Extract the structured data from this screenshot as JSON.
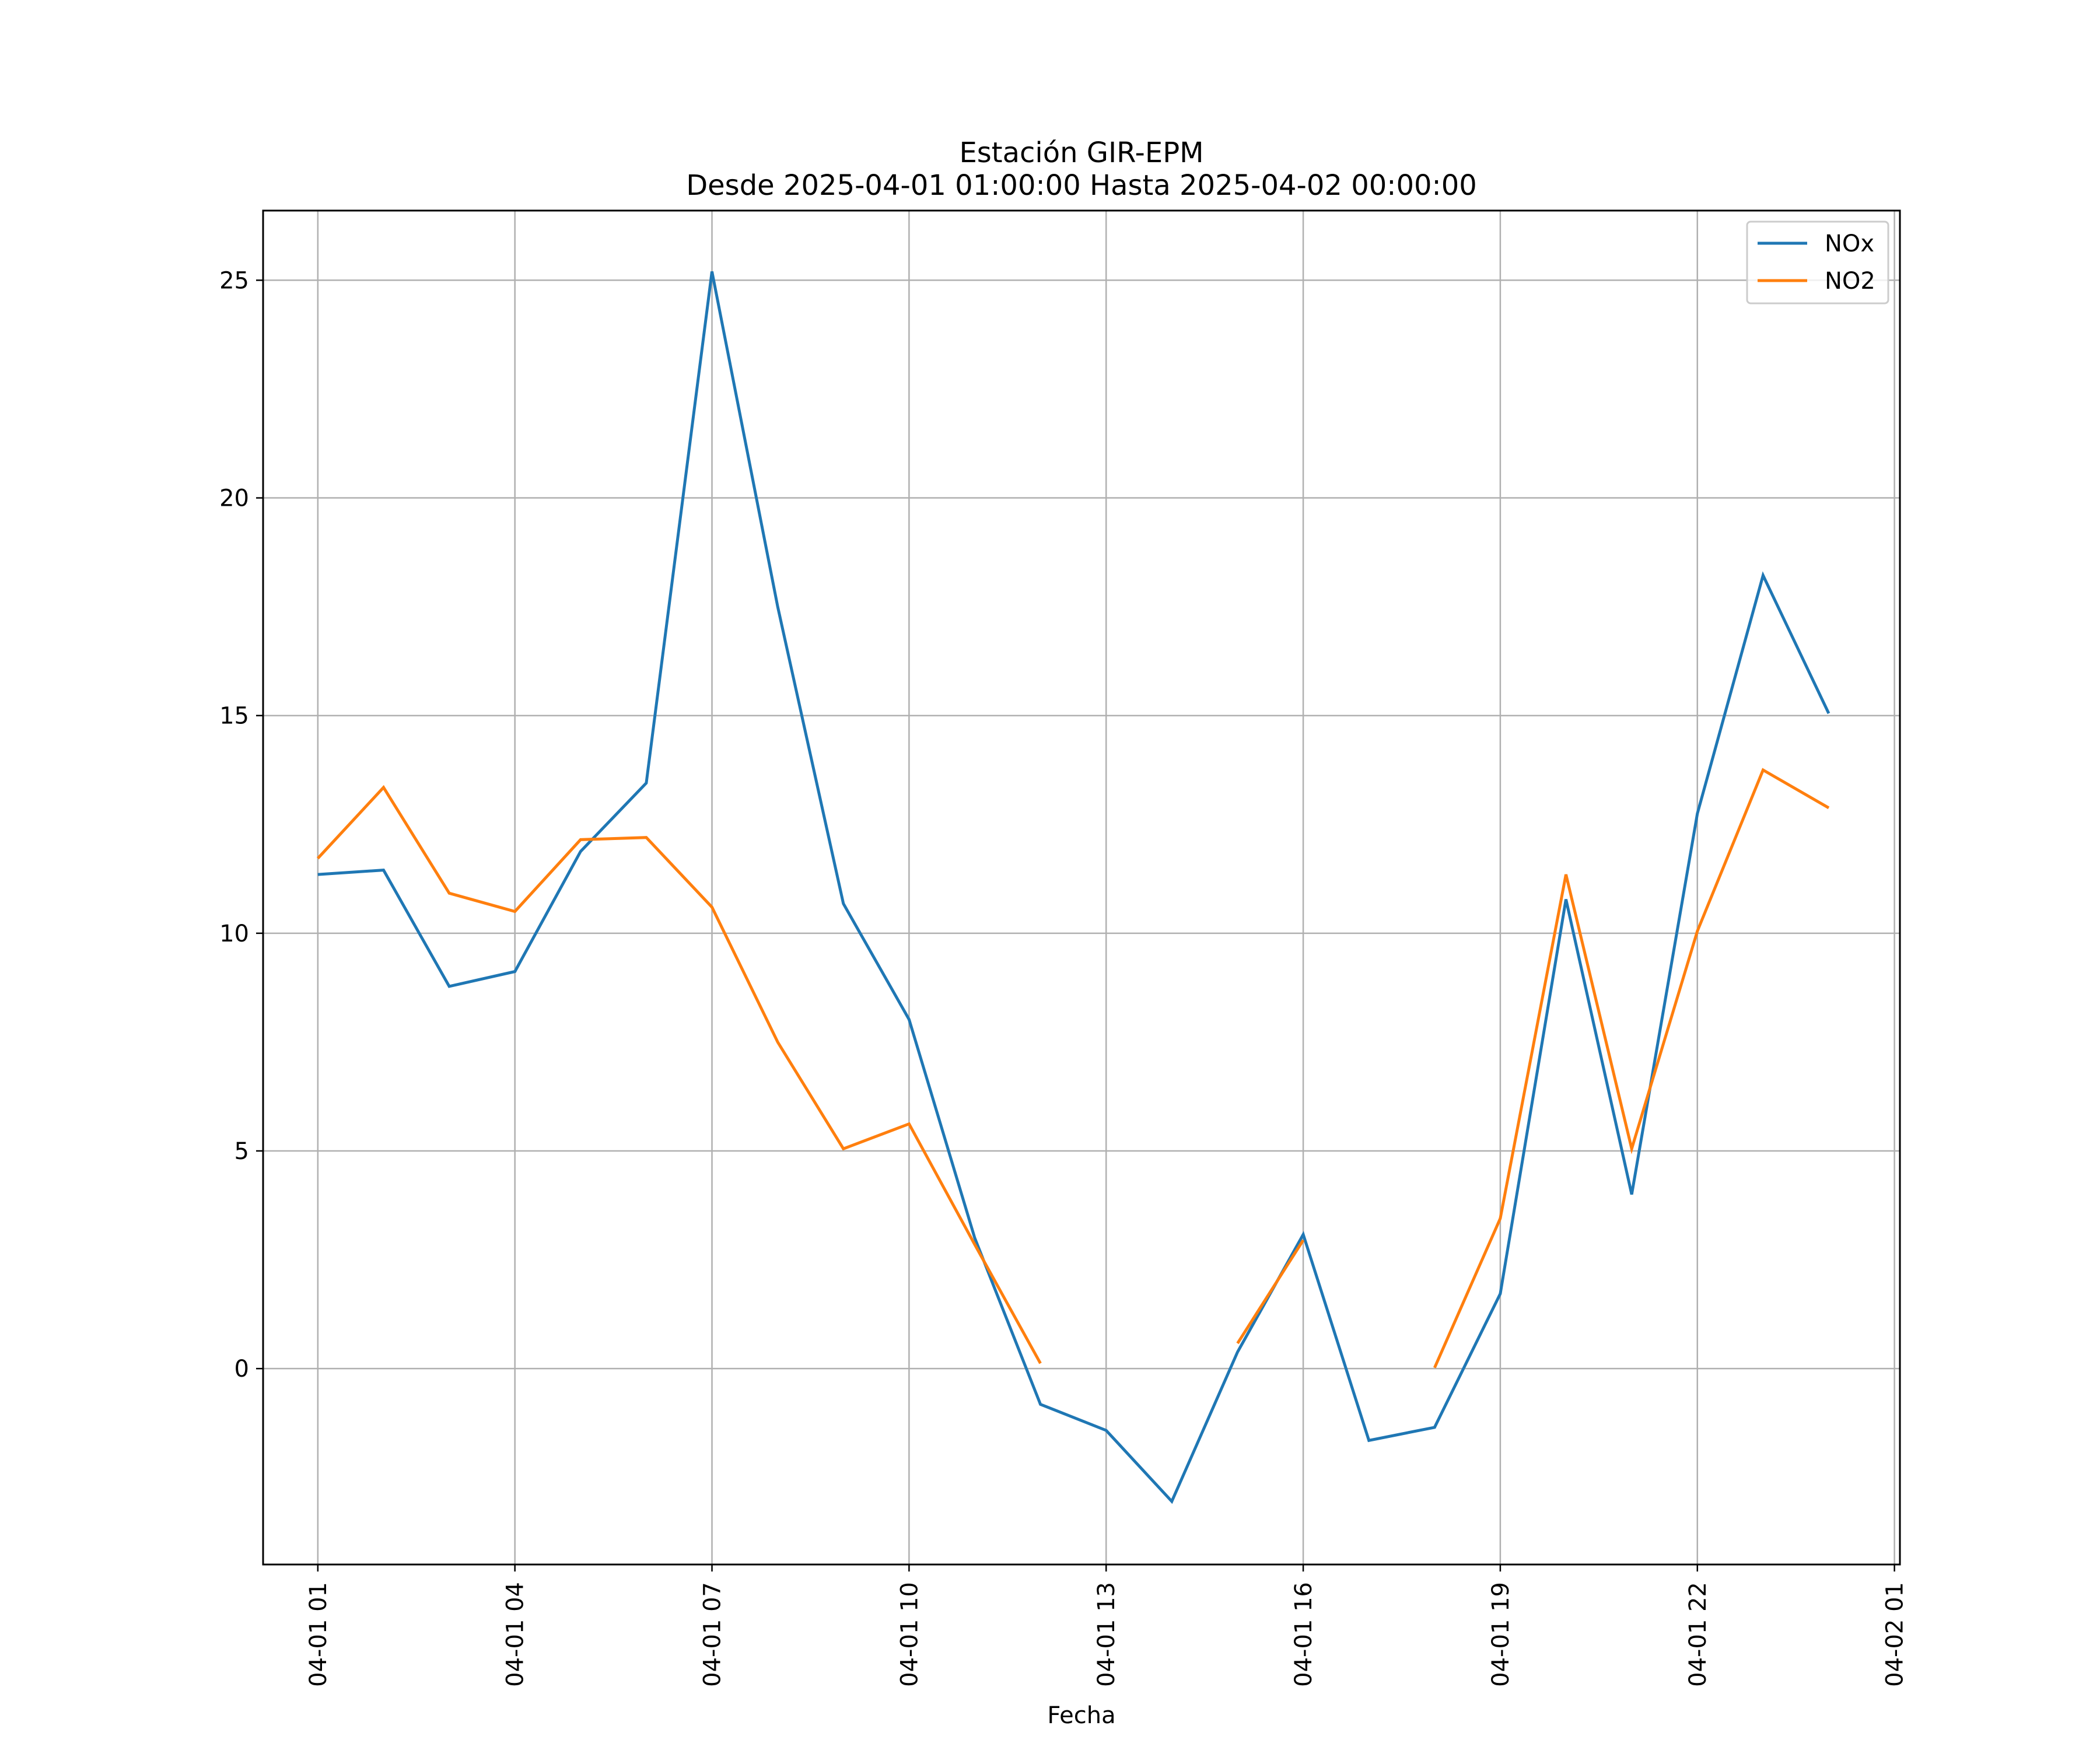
{
  "chart_data": {
    "type": "line",
    "title": "Estación GIR-EPM",
    "subtitle": "Desde 2025-04-01 01:00:00 Hasta 2025-04-02 00:00:00",
    "xlabel": "Fecha",
    "ylabel": "",
    "x": [
      "04-01 01",
      "04-01 02",
      "04-01 03",
      "04-01 04",
      "04-01 05",
      "04-01 06",
      "04-01 07",
      "04-01 08",
      "04-01 09",
      "04-01 10",
      "04-01 11",
      "04-01 12",
      "04-01 13",
      "04-01 14",
      "04-01 15",
      "04-01 16",
      "04-01 17",
      "04-01 18",
      "04-01 19",
      "04-01 20",
      "04-01 21",
      "04-01 22",
      "04-01 23",
      "04-02 00"
    ],
    "x_tick_labels": [
      "04-01 01",
      "04-01 04",
      "04-01 07",
      "04-01 10",
      "04-01 13",
      "04-01 16",
      "04-01 19",
      "04-01 22",
      "04-02 01"
    ],
    "xlim": [
      "04-01 00:10",
      "04-02 01:05"
    ],
    "y_ticks": [
      0,
      5,
      10,
      15,
      20,
      25
    ],
    "ylim": [
      -4.5,
      26.6
    ],
    "grid": true,
    "legend_position": "top-right",
    "series": [
      {
        "name": "NOx",
        "color": "#1f77b4",
        "values": [
          11.35,
          11.45,
          8.78,
          9.12,
          11.88,
          13.45,
          25.2,
          17.5,
          10.68,
          8.02,
          3.0,
          -0.82,
          -1.42,
          -3.05,
          0.38,
          3.08,
          -1.65,
          -1.35,
          1.72,
          10.78,
          4.0,
          12.75,
          18.22,
          15.05
        ]
      },
      {
        "name": "NO2",
        "color": "#ff7f0e",
        "values": [
          11.72,
          13.35,
          10.92,
          10.5,
          12.15,
          12.2,
          10.6,
          7.5,
          5.05,
          5.62,
          2.85,
          0.12,
          null,
          null,
          0.58,
          2.95,
          null,
          0.02,
          3.45,
          11.35,
          5.05,
          10.05,
          13.75,
          12.88
        ]
      }
    ]
  }
}
